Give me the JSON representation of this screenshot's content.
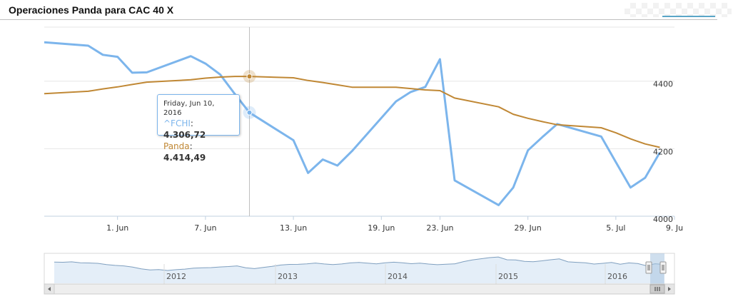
{
  "page": {
    "title": "Operaciones Panda para CAC 40 X"
  },
  "colors": {
    "fchi": "#7cb5ec",
    "panda": "#c08835",
    "grid": "#e6e6e6"
  },
  "tooltip": {
    "date": "Friday, Jun 10, 2016",
    "rows": [
      {
        "name": "^FCHI",
        "sep": ": ",
        "value": "4.306,72"
      },
      {
        "name": "Panda",
        "sep": ": ",
        "value": "4.414,49"
      }
    ]
  },
  "chart_data": {
    "type": "line",
    "title": "Operaciones Panda para CAC 40 X",
    "y_range": [
      4000,
      4560
    ],
    "yticks": [
      {
        "value": 4000,
        "label": "4000"
      },
      {
        "value": 4200,
        "label": "4200"
      },
      {
        "value": 4400,
        "label": "4400"
      }
    ],
    "x_range": [
      "2016-05-27",
      "2016-07-09"
    ],
    "xticks": [
      {
        "date": "2016-06-01",
        "label": "1. Jun"
      },
      {
        "date": "2016-06-07",
        "label": "7. Jun"
      },
      {
        "date": "2016-06-13",
        "label": "13. Jun"
      },
      {
        "date": "2016-06-19",
        "label": "19. Jun"
      },
      {
        "date": "2016-06-23",
        "label": "23. Jun"
      },
      {
        "date": "2016-06-29",
        "label": "29. Jun"
      },
      {
        "date": "2016-07-05",
        "label": "5. Jul"
      },
      {
        "date": "2016-07-09",
        "label": "9. Ju"
      }
    ],
    "crosshair_date": "2016-06-10",
    "grid": true,
    "series": [
      {
        "name": "^FCHI",
        "points": [
          [
            "2016-05-27",
            4515
          ],
          [
            "2016-05-30",
            4505
          ],
          [
            "2016-05-31",
            4478
          ],
          [
            "2016-06-01",
            4472
          ],
          [
            "2016-06-02",
            4425
          ],
          [
            "2016-06-03",
            4426
          ],
          [
            "2016-06-06",
            4474
          ],
          [
            "2016-06-07",
            4452
          ],
          [
            "2016-06-08",
            4420
          ],
          [
            "2016-06-09",
            4362
          ],
          [
            "2016-06-10",
            4307
          ],
          [
            "2016-06-13",
            4225
          ],
          [
            "2016-06-14",
            4128
          ],
          [
            "2016-06-15",
            4168
          ],
          [
            "2016-06-16",
            4150
          ],
          [
            "2016-06-17",
            4193
          ],
          [
            "2016-06-20",
            4340
          ],
          [
            "2016-06-21",
            4368
          ],
          [
            "2016-06-22",
            4383
          ],
          [
            "2016-06-23",
            4465
          ],
          [
            "2016-06-24",
            4106
          ],
          [
            "2016-06-27",
            4033
          ],
          [
            "2016-06-28",
            4085
          ],
          [
            "2016-06-29",
            4195
          ],
          [
            "2016-06-30",
            4235
          ],
          [
            "2016-07-01",
            4273
          ],
          [
            "2016-07-04",
            4236
          ],
          [
            "2016-07-05",
            4160
          ],
          [
            "2016-07-06",
            4085
          ],
          [
            "2016-07-07",
            4114
          ],
          [
            "2016-07-08",
            4189
          ]
        ]
      },
      {
        "name": "Panda",
        "points": [
          [
            "2016-05-27",
            4363
          ],
          [
            "2016-05-30",
            4370
          ],
          [
            "2016-05-31",
            4377
          ],
          [
            "2016-06-01",
            4383
          ],
          [
            "2016-06-02",
            4390
          ],
          [
            "2016-06-03",
            4397
          ],
          [
            "2016-06-06",
            4404
          ],
          [
            "2016-06-07",
            4409
          ],
          [
            "2016-06-08",
            4412
          ],
          [
            "2016-06-09",
            4414
          ],
          [
            "2016-06-10",
            4414
          ],
          [
            "2016-06-13",
            4410
          ],
          [
            "2016-06-14",
            4402
          ],
          [
            "2016-06-15",
            4396
          ],
          [
            "2016-06-16",
            4389
          ],
          [
            "2016-06-17",
            4382
          ],
          [
            "2016-06-20",
            4382
          ],
          [
            "2016-06-21",
            4378
          ],
          [
            "2016-06-22",
            4374
          ],
          [
            "2016-06-23",
            4372
          ],
          [
            "2016-06-24",
            4350
          ],
          [
            "2016-06-27",
            4324
          ],
          [
            "2016-06-28",
            4302
          ],
          [
            "2016-06-29",
            4290
          ],
          [
            "2016-06-30",
            4280
          ],
          [
            "2016-07-01",
            4271
          ],
          [
            "2016-07-04",
            4262
          ],
          [
            "2016-07-05",
            4247
          ],
          [
            "2016-07-06",
            4229
          ],
          [
            "2016-07-07",
            4214
          ],
          [
            "2016-07-08",
            4204
          ]
        ]
      }
    ],
    "navigator": {
      "labels": [
        "2012",
        "2013",
        "2014",
        "2015",
        "2016"
      ],
      "values": [
        4540,
        4510,
        4570,
        4440,
        4400,
        4350,
        4160,
        4050,
        3980,
        3810,
        3540,
        3390,
        3430,
        3300,
        3420,
        3500,
        3640,
        3690,
        3720,
        3820,
        3880,
        3980,
        3690,
        3580,
        3750,
        3900,
        4100,
        4200,
        4210,
        4280,
        4390,
        4260,
        4170,
        4260,
        4420,
        4480,
        4370,
        4280,
        4440,
        4520,
        4430,
        4300,
        4380,
        4250,
        4150,
        4230,
        4280,
        4600,
        4850,
        5020,
        5190,
        5280,
        4880,
        4860,
        4640,
        4590,
        4720,
        4880,
        5000,
        4570,
        4500,
        4440,
        4250,
        4350,
        4480,
        4220,
        4420,
        4320,
        4010,
        4290,
        4200
      ]
    }
  }
}
